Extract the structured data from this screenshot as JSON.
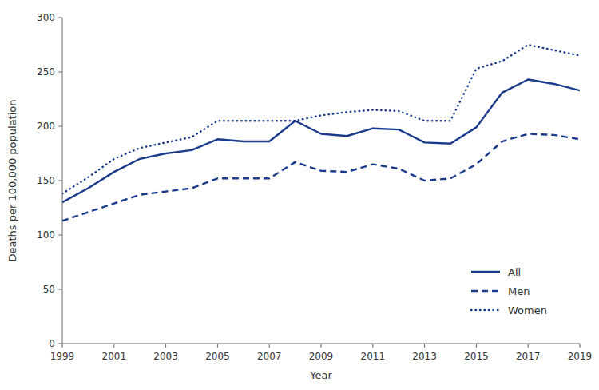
{
  "chart_data": {
    "type": "line",
    "xlabel": "Year",
    "ylabel": "Deaths per 100,000 population",
    "x": [
      1999,
      2000,
      2001,
      2002,
      2003,
      2004,
      2005,
      2006,
      2007,
      2008,
      2009,
      2010,
      2011,
      2012,
      2013,
      2014,
      2015,
      2016,
      2017,
      2018,
      2019
    ],
    "series": [
      {
        "name": "All",
        "color": "#1a3a8c",
        "line_style": "solid",
        "values": [
          130,
          143,
          158,
          170,
          175,
          178,
          188,
          186,
          186,
          205,
          193,
          191,
          198,
          197,
          185,
          184,
          199,
          231,
          243,
          239,
          233
        ]
      },
      {
        "name": "Men",
        "color": "#1a3a8c",
        "line_style": "dashed",
        "values": [
          113,
          121,
          129,
          137,
          140,
          143,
          152,
          152,
          152,
          167,
          159,
          158,
          165,
          161,
          150,
          152,
          165,
          186,
          193,
          192,
          188
        ]
      },
      {
        "name": "Women",
        "color": "#1a3a8c",
        "line_style": "dotted",
        "values": [
          138,
          153,
          170,
          180,
          185,
          190,
          205,
          205,
          205,
          205,
          210,
          213,
          215,
          214,
          205,
          205,
          253,
          260,
          275,
          270,
          265
        ]
      }
    ],
    "xlim": [
      1999,
      2019
    ],
    "xticks": [
      1999,
      2001,
      2003,
      2005,
      2007,
      2009,
      2011,
      2013,
      2015,
      2017,
      2019
    ],
    "ylim": [
      0,
      300
    ],
    "yticks": [
      0,
      50,
      100,
      150,
      200,
      250,
      300
    ],
    "grid": false,
    "legend": "lower right"
  }
}
